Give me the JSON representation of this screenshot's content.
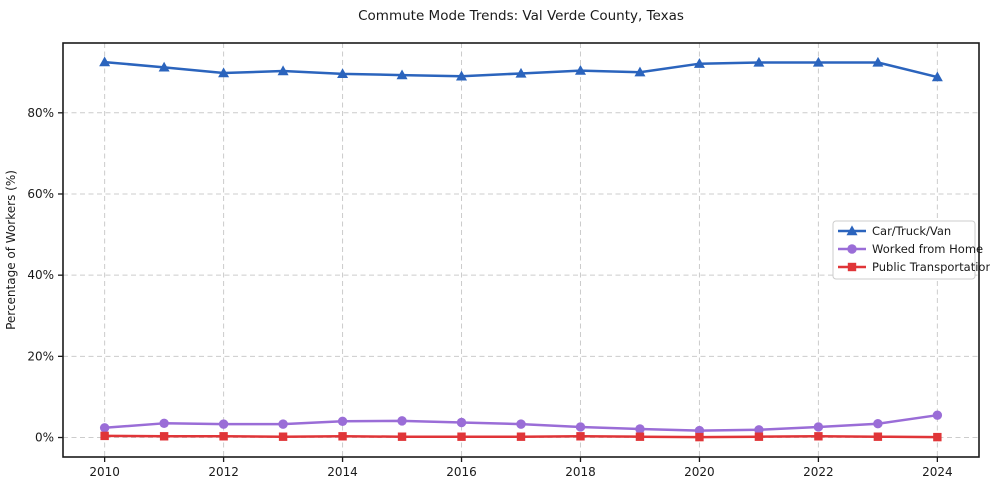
{
  "chart_data": {
    "type": "line",
    "title": "Commute Mode Trends: Val Verde County, Texas",
    "ylabel": "Percentage of Workers (%)",
    "xlabel": "",
    "grid": true,
    "legend_position": "center right",
    "background_color": "#ffffff",
    "grid_color": "#cccccc",
    "spine_color": "#1a1a1a",
    "text_color": "#1a1a1a",
    "xlim": [
      2009.3,
      2024.7
    ],
    "ylim": [
      -4.8,
      97.2
    ],
    "x": [
      2010,
      2011,
      2012,
      2013,
      2014,
      2015,
      2016,
      2017,
      2018,
      2019,
      2020,
      2021,
      2022,
      2023,
      2024
    ],
    "xticks": [
      {
        "value": 2010,
        "label": "2010"
      },
      {
        "value": 2012,
        "label": "2012"
      },
      {
        "value": 2014,
        "label": "2014"
      },
      {
        "value": 2016,
        "label": "2016"
      },
      {
        "value": 2018,
        "label": "2018"
      },
      {
        "value": 2020,
        "label": "2020"
      },
      {
        "value": 2022,
        "label": "2022"
      },
      {
        "value": 2024,
        "label": "2024"
      }
    ],
    "yticks": [
      {
        "value": 0,
        "label": "0%"
      },
      {
        "value": 20,
        "label": "20%"
      },
      {
        "value": 40,
        "label": "40%"
      },
      {
        "value": 60,
        "label": "60%"
      },
      {
        "value": 80,
        "label": "80%"
      }
    ],
    "series": [
      {
        "name": "Car/Truck/Van",
        "color": "#2b64bd",
        "marker": "triangle",
        "values": [
          92.5,
          91.2,
          89.8,
          90.3,
          89.6,
          89.3,
          89.0,
          89.7,
          90.4,
          90.0,
          92.1,
          92.4,
          92.4,
          92.4,
          88.8
        ]
      },
      {
        "name": "Worked from Home",
        "color": "#9a6dd7",
        "marker": "circle",
        "values": [
          2.4,
          3.5,
          3.3,
          3.3,
          4.0,
          4.1,
          3.7,
          3.3,
          2.6,
          2.1,
          1.7,
          1.9,
          2.6,
          3.4,
          5.5
        ]
      },
      {
        "name": "Public Transportation",
        "color": "#e03538",
        "marker": "square",
        "values": [
          0.4,
          0.3,
          0.3,
          0.2,
          0.3,
          0.2,
          0.2,
          0.2,
          0.3,
          0.2,
          0.1,
          0.2,
          0.3,
          0.2,
          0.1
        ]
      }
    ]
  }
}
